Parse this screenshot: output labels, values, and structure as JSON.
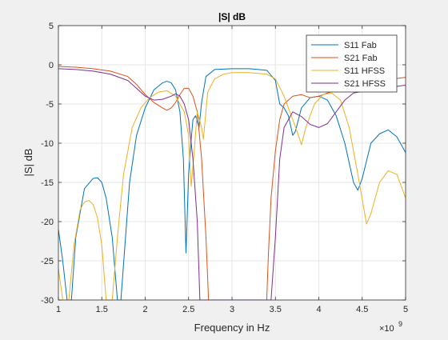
{
  "colors": {
    "figure_bg": "#f0f0f0",
    "axes_bg": "#ffffff",
    "grid": "#e6e6e6",
    "axis": "#262626"
  },
  "chart_data": {
    "type": "line",
    "title": "|S| dB",
    "xlabel": "Frequency in Hz",
    "ylabel": "|S| dB",
    "x_exponent_label": "×10",
    "x_exponent_power": "9",
    "xlim": [
      1,
      5
    ],
    "ylim": [
      -30,
      5
    ],
    "xticks": [
      1,
      1.5,
      2,
      2.5,
      3,
      3.5,
      4,
      4.5,
      5
    ],
    "yticks": [
      -30,
      -25,
      -20,
      -15,
      -10,
      -5,
      0,
      5
    ],
    "grid": true,
    "legend_position": "top-right",
    "series": [
      {
        "name": "S11 Fab",
        "color": "#0072bd",
        "points": [
          [
            1.0,
            -21
          ],
          [
            1.05,
            -25
          ],
          [
            1.1,
            -30
          ],
          [
            1.15,
            -30
          ],
          [
            1.2,
            -22
          ],
          [
            1.3,
            -15.8
          ],
          [
            1.4,
            -14.5
          ],
          [
            1.45,
            -14.4
          ],
          [
            1.5,
            -15
          ],
          [
            1.55,
            -17
          ],
          [
            1.62,
            -22
          ],
          [
            1.68,
            -30
          ],
          [
            1.72,
            -30
          ],
          [
            1.76,
            -24
          ],
          [
            1.82,
            -15
          ],
          [
            1.9,
            -9
          ],
          [
            2.0,
            -5.5
          ],
          [
            2.1,
            -3.2
          ],
          [
            2.2,
            -2.3
          ],
          [
            2.25,
            -2.1
          ],
          [
            2.3,
            -2.3
          ],
          [
            2.35,
            -3.2
          ],
          [
            2.4,
            -6
          ],
          [
            2.44,
            -12
          ],
          [
            2.47,
            -24
          ],
          [
            2.5,
            -14
          ],
          [
            2.53,
            -9.5
          ],
          [
            2.55,
            -7
          ],
          [
            2.58,
            -6.5
          ],
          [
            2.62,
            -8
          ],
          [
            2.65,
            -4.8
          ],
          [
            2.7,
            -1.5
          ],
          [
            2.8,
            -0.6
          ],
          [
            3.0,
            -0.5
          ],
          [
            3.2,
            -0.5
          ],
          [
            3.4,
            -0.7
          ],
          [
            3.5,
            -2
          ],
          [
            3.55,
            -5
          ],
          [
            3.6,
            -5.5
          ],
          [
            3.65,
            -6.5
          ],
          [
            3.7,
            -9
          ],
          [
            3.73,
            -8.5
          ],
          [
            3.8,
            -5.5
          ],
          [
            3.9,
            -4.2
          ],
          [
            4.0,
            -4
          ],
          [
            4.1,
            -4.5
          ],
          [
            4.2,
            -6.5
          ],
          [
            4.3,
            -10
          ],
          [
            4.4,
            -15
          ],
          [
            4.45,
            -16
          ],
          [
            4.5,
            -14.5
          ],
          [
            4.6,
            -10
          ],
          [
            4.7,
            -8.8
          ],
          [
            4.8,
            -8.3
          ],
          [
            4.9,
            -9.2
          ],
          [
            5.0,
            -11.2
          ]
        ]
      },
      {
        "name": "S21 Fab",
        "color": "#d95319",
        "points": [
          [
            1.0,
            -0.2
          ],
          [
            1.2,
            -0.3
          ],
          [
            1.4,
            -0.5
          ],
          [
            1.6,
            -0.8
          ],
          [
            1.8,
            -1.5
          ],
          [
            1.9,
            -2.5
          ],
          [
            2.0,
            -3.8
          ],
          [
            2.1,
            -4.8
          ],
          [
            2.2,
            -5.5
          ],
          [
            2.25,
            -5.8
          ],
          [
            2.3,
            -5.5
          ],
          [
            2.35,
            -4.8
          ],
          [
            2.4,
            -3.8
          ],
          [
            2.45,
            -3
          ],
          [
            2.5,
            -3
          ],
          [
            2.55,
            -4
          ],
          [
            2.6,
            -6
          ],
          [
            2.65,
            -12
          ],
          [
            2.7,
            -22
          ],
          [
            2.73,
            -30
          ],
          [
            3.4,
            -30
          ],
          [
            3.42,
            -24
          ],
          [
            3.45,
            -17
          ],
          [
            3.5,
            -11
          ],
          [
            3.55,
            -7
          ],
          [
            3.6,
            -5
          ],
          [
            3.7,
            -4
          ],
          [
            3.8,
            -3.8
          ],
          [
            3.9,
            -4.2
          ],
          [
            4.0,
            -4
          ],
          [
            4.2,
            -3.2
          ],
          [
            4.4,
            -2.5
          ],
          [
            4.6,
            -2.2
          ],
          [
            4.8,
            -1.9
          ],
          [
            5.0,
            -1.6
          ]
        ]
      },
      {
        "name": "S11 HFSS",
        "color": "#edb120",
        "points": [
          [
            1.0,
            -26
          ],
          [
            1.05,
            -30
          ],
          [
            1.12,
            -30
          ],
          [
            1.18,
            -23
          ],
          [
            1.25,
            -18.5
          ],
          [
            1.3,
            -17.5
          ],
          [
            1.35,
            -17.3
          ],
          [
            1.4,
            -17.8
          ],
          [
            1.45,
            -19.5
          ],
          [
            1.5,
            -23
          ],
          [
            1.55,
            -30
          ],
          [
            1.62,
            -30
          ],
          [
            1.68,
            -22
          ],
          [
            1.75,
            -14
          ],
          [
            1.85,
            -8
          ],
          [
            1.95,
            -5.5
          ],
          [
            2.05,
            -4.2
          ],
          [
            2.15,
            -3.5
          ],
          [
            2.25,
            -3.3
          ],
          [
            2.35,
            -4
          ],
          [
            2.45,
            -6
          ],
          [
            2.5,
            -9
          ],
          [
            2.53,
            -15.5
          ],
          [
            2.55,
            -13
          ],
          [
            2.6,
            -6
          ],
          [
            2.65,
            -8
          ],
          [
            2.67,
            -9.5
          ],
          [
            2.72,
            -3.5
          ],
          [
            2.8,
            -1.8
          ],
          [
            2.9,
            -1.2
          ],
          [
            3.0,
            -1.0
          ],
          [
            3.2,
            -1.0
          ],
          [
            3.4,
            -1.2
          ],
          [
            3.5,
            -1.8
          ],
          [
            3.6,
            -4
          ],
          [
            3.7,
            -7
          ],
          [
            3.75,
            -8.5
          ],
          [
            3.8,
            -10.2
          ],
          [
            3.85,
            -8
          ],
          [
            3.95,
            -5
          ],
          [
            4.05,
            -3.8
          ],
          [
            4.15,
            -3.6
          ],
          [
            4.25,
            -4.5
          ],
          [
            4.35,
            -8
          ],
          [
            4.45,
            -14
          ],
          [
            4.55,
            -20.3
          ],
          [
            4.6,
            -19
          ],
          [
            4.7,
            -15
          ],
          [
            4.8,
            -13.5
          ],
          [
            4.9,
            -14
          ],
          [
            5.0,
            -17
          ]
        ]
      },
      {
        "name": "S21 HFSS",
        "color": "#7e2f8e",
        "points": [
          [
            1.0,
            -0.5
          ],
          [
            1.2,
            -0.6
          ],
          [
            1.4,
            -0.8
          ],
          [
            1.6,
            -1.2
          ],
          [
            1.8,
            -2
          ],
          [
            1.9,
            -3
          ],
          [
            2.0,
            -4
          ],
          [
            2.1,
            -4.5
          ],
          [
            2.2,
            -4.4
          ],
          [
            2.3,
            -4
          ],
          [
            2.35,
            -3.7
          ],
          [
            2.4,
            -4
          ],
          [
            2.45,
            -5
          ],
          [
            2.5,
            -7
          ],
          [
            2.55,
            -12
          ],
          [
            2.6,
            -20
          ],
          [
            2.63,
            -30
          ],
          [
            3.45,
            -30
          ],
          [
            3.5,
            -22
          ],
          [
            3.55,
            -12
          ],
          [
            3.6,
            -8
          ],
          [
            3.7,
            -6
          ],
          [
            3.8,
            -6.6
          ],
          [
            3.9,
            -7.6
          ],
          [
            4.0,
            -8
          ],
          [
            4.1,
            -7.5
          ],
          [
            4.2,
            -6
          ],
          [
            4.3,
            -4.5
          ],
          [
            4.4,
            -3.6
          ],
          [
            4.6,
            -3.2
          ],
          [
            4.8,
            -2.9
          ],
          [
            5.0,
            -2.6
          ]
        ]
      }
    ]
  }
}
